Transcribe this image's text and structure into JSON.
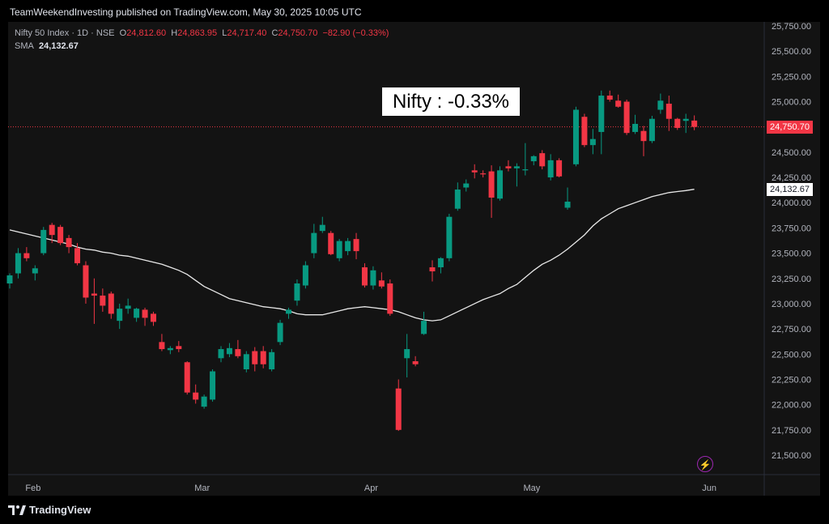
{
  "header": {
    "publish_text": "TeamWeekendInvesting published on TradingView.com, May 30, 2025 10:05 UTC"
  },
  "legend": {
    "symbol": "Nifty 50 Index · 1D · NSE",
    "open_label": "O",
    "open": "24,812.60",
    "high_label": "H",
    "high": "24,863.95",
    "low_label": "L",
    "low": "24,717.40",
    "close_label": "C",
    "close": "24,750.70",
    "change": "−82.90 (−0.33%)",
    "sma_label": "SMA",
    "sma_value": "24,132.67"
  },
  "annotation": "Nifty : -0.33%",
  "footer": {
    "brand": "TradingView"
  },
  "colors": {
    "up": "#089981",
    "down": "#f23645",
    "sma": "#e8e8e8",
    "background": "#131313"
  },
  "icons": {
    "footer_logo": "tradingview-logo-icon",
    "bolt": "lightning-icon"
  },
  "chart_data": {
    "type": "candlestick",
    "y_axis": {
      "side": "right",
      "ylim": [
        21300,
        25800
      ],
      "ticks": [
        "21,500.00",
        "21,750.00",
        "22,000.00",
        "22,250.00",
        "22,500.00",
        "22,750.00",
        "23,000.00",
        "23,250.00",
        "23,500.00",
        "23,750.00",
        "24,000.00",
        "24,250.00",
        "24,500.00",
        "24,750.00",
        "25,000.00",
        "25,250.00",
        "25,500.00",
        "25,750.00"
      ],
      "tick_values": [
        21500,
        21750,
        22000,
        22250,
        22500,
        22750,
        23000,
        23250,
        23500,
        23750,
        24000,
        24250,
        24500,
        24750,
        25000,
        25250,
        25500,
        25750
      ]
    },
    "x_axis": {
      "labels": [
        "Feb",
        "Mar",
        "Apr",
        "May",
        "Jun"
      ],
      "label_index": [
        2,
        22,
        42,
        61,
        82
      ]
    },
    "price_line": {
      "value": 24750.7,
      "label": "24,750.70"
    },
    "sma_marker": {
      "value": 24132.67,
      "label": "24,132.67"
    },
    "candles": [
      {
        "o": 23200,
        "h": 23300,
        "l": 23150,
        "c": 23280
      },
      {
        "o": 23300,
        "h": 23550,
        "l": 23250,
        "c": 23500
      },
      {
        "o": 23500,
        "h": 23560,
        "l": 23420,
        "c": 23450
      },
      {
        "o": 23300,
        "h": 23380,
        "l": 23230,
        "c": 23350
      },
      {
        "o": 23500,
        "h": 23760,
        "l": 23480,
        "c": 23730
      },
      {
        "o": 23780,
        "h": 23800,
        "l": 23600,
        "c": 23680
      },
      {
        "o": 23760,
        "h": 23780,
        "l": 23580,
        "c": 23600
      },
      {
        "o": 23650,
        "h": 23680,
        "l": 23500,
        "c": 23560
      },
      {
        "o": 23550,
        "h": 23600,
        "l": 23380,
        "c": 23400
      },
      {
        "o": 23380,
        "h": 23420,
        "l": 23000,
        "c": 23060
      },
      {
        "o": 23100,
        "h": 23250,
        "l": 22800,
        "c": 23080
      },
      {
        "o": 23080,
        "h": 23150,
        "l": 22920,
        "c": 22980
      },
      {
        "o": 23100,
        "h": 23120,
        "l": 22850,
        "c": 22900
      },
      {
        "o": 22830,
        "h": 23000,
        "l": 22750,
        "c": 22950
      },
      {
        "o": 22950,
        "h": 23050,
        "l": 22900,
        "c": 22980
      },
      {
        "o": 22860,
        "h": 22960,
        "l": 22820,
        "c": 22950
      },
      {
        "o": 22940,
        "h": 22960,
        "l": 22780,
        "c": 22860
      },
      {
        "o": 22900,
        "h": 22920,
        "l": 22780,
        "c": 22820
      },
      {
        "o": 22620,
        "h": 22700,
        "l": 22530,
        "c": 22550
      },
      {
        "o": 22540,
        "h": 22580,
        "l": 22500,
        "c": 22560
      },
      {
        "o": 22580,
        "h": 22630,
        "l": 22520,
        "c": 22550
      },
      {
        "o": 22420,
        "h": 22430,
        "l": 22100,
        "c": 22120
      },
      {
        "o": 22120,
        "h": 22200,
        "l": 22010,
        "c": 22050
      },
      {
        "o": 21980,
        "h": 22100,
        "l": 21960,
        "c": 22080
      },
      {
        "o": 22050,
        "h": 22350,
        "l": 22030,
        "c": 22330
      },
      {
        "o": 22460,
        "h": 22580,
        "l": 22420,
        "c": 22550
      },
      {
        "o": 22500,
        "h": 22610,
        "l": 22470,
        "c": 22560
      },
      {
        "o": 22550,
        "h": 22640,
        "l": 22460,
        "c": 22480
      },
      {
        "o": 22350,
        "h": 22530,
        "l": 22320,
        "c": 22500
      },
      {
        "o": 22530,
        "h": 22570,
        "l": 22330,
        "c": 22400
      },
      {
        "o": 22530,
        "h": 22580,
        "l": 22360,
        "c": 22400
      },
      {
        "o": 22350,
        "h": 22550,
        "l": 22330,
        "c": 22520
      },
      {
        "o": 22620,
        "h": 22840,
        "l": 22590,
        "c": 22810
      },
      {
        "o": 22900,
        "h": 22960,
        "l": 22850,
        "c": 22940
      },
      {
        "o": 23030,
        "h": 23240,
        "l": 22980,
        "c": 23200
      },
      {
        "o": 23180,
        "h": 23420,
        "l": 23150,
        "c": 23380
      },
      {
        "o": 23500,
        "h": 23790,
        "l": 23450,
        "c": 23700
      },
      {
        "o": 23720,
        "h": 23860,
        "l": 23700,
        "c": 23780
      },
      {
        "o": 23700,
        "h": 23720,
        "l": 23480,
        "c": 23490
      },
      {
        "o": 23450,
        "h": 23640,
        "l": 23420,
        "c": 23620
      },
      {
        "o": 23520,
        "h": 23650,
        "l": 23480,
        "c": 23620
      },
      {
        "o": 23640,
        "h": 23700,
        "l": 23440,
        "c": 23520
      },
      {
        "o": 23360,
        "h": 23400,
        "l": 23160,
        "c": 23180
      },
      {
        "o": 23180,
        "h": 23370,
        "l": 23140,
        "c": 23330
      },
      {
        "o": 23230,
        "h": 23310,
        "l": 23150,
        "c": 23170
      },
      {
        "o": 23200,
        "h": 23240,
        "l": 22880,
        "c": 22900
      },
      {
        "o": 22160,
        "h": 22250,
        "l": 21740,
        "c": 21750
      },
      {
        "o": 22460,
        "h": 22700,
        "l": 22270,
        "c": 22550
      },
      {
        "o": 22430,
        "h": 22480,
        "l": 22380,
        "c": 22400
      },
      {
        "o": 22700,
        "h": 22920,
        "l": 22690,
        "c": 22830
      },
      {
        "o": 23360,
        "h": 23430,
        "l": 23220,
        "c": 23320
      },
      {
        "o": 23360,
        "h": 23460,
        "l": 23300,
        "c": 23450
      },
      {
        "o": 23450,
        "h": 23890,
        "l": 23420,
        "c": 23860
      },
      {
        "o": 23940,
        "h": 24200,
        "l": 23920,
        "c": 24130
      },
      {
        "o": 24150,
        "h": 24230,
        "l": 24110,
        "c": 24190
      },
      {
        "o": 24320,
        "h": 24380,
        "l": 24240,
        "c": 24300
      },
      {
        "o": 24290,
        "h": 24320,
        "l": 24250,
        "c": 24280
      },
      {
        "o": 24310,
        "h": 24370,
        "l": 23850,
        "c": 24050
      },
      {
        "o": 24040,
        "h": 24360,
        "l": 24020,
        "c": 24320
      },
      {
        "o": 24360,
        "h": 24420,
        "l": 24310,
        "c": 24340
      },
      {
        "o": 24340,
        "h": 24390,
        "l": 24160,
        "c": 24360
      },
      {
        "o": 24320,
        "h": 24590,
        "l": 24270,
        "c": 24330
      },
      {
        "o": 24410,
        "h": 24470,
        "l": 24370,
        "c": 24460
      },
      {
        "o": 24490,
        "h": 24520,
        "l": 24330,
        "c": 24360
      },
      {
        "o": 24250,
        "h": 24480,
        "l": 24220,
        "c": 24420
      },
      {
        "o": 24420,
        "h": 24440,
        "l": 24250,
        "c": 24260
      },
      {
        "o": 23950,
        "h": 24150,
        "l": 23930,
        "c": 24010
      },
      {
        "o": 24380,
        "h": 24950,
        "l": 24360,
        "c": 24920
      },
      {
        "o": 24850,
        "h": 24880,
        "l": 24550,
        "c": 24570
      },
      {
        "o": 24570,
        "h": 24730,
        "l": 24480,
        "c": 24630
      },
      {
        "o": 24700,
        "h": 25110,
        "l": 24480,
        "c": 25060
      },
      {
        "o": 25060,
        "h": 25110,
        "l": 25000,
        "c": 25020
      },
      {
        "o": 25010,
        "h": 25070,
        "l": 24940,
        "c": 24950
      },
      {
        "o": 25000,
        "h": 25020,
        "l": 24670,
        "c": 24690
      },
      {
        "o": 24700,
        "h": 24870,
        "l": 24680,
        "c": 24780
      },
      {
        "o": 24710,
        "h": 24760,
        "l": 24460,
        "c": 24610
      },
      {
        "o": 24610,
        "h": 24860,
        "l": 24590,
        "c": 24830
      },
      {
        "o": 24920,
        "h": 25080,
        "l": 24880,
        "c": 25010
      },
      {
        "o": 24980,
        "h": 25060,
        "l": 24710,
        "c": 24830
      },
      {
        "o": 24830,
        "h": 24840,
        "l": 24720,
        "c": 24740
      },
      {
        "o": 24810,
        "h": 24880,
        "l": 24690,
        "c": 24830
      },
      {
        "o": 24812.6,
        "h": 24863.95,
        "l": 24717.4,
        "c": 24750.7
      }
    ],
    "sma": [
      23730,
      23710,
      23690,
      23670,
      23650,
      23630,
      23610,
      23590,
      23560,
      23540,
      23530,
      23510,
      23500,
      23480,
      23470,
      23450,
      23430,
      23410,
      23390,
      23360,
      23330,
      23290,
      23230,
      23170,
      23130,
      23090,
      23050,
      23030,
      23010,
      22990,
      22970,
      22960,
      22950,
      22930,
      22900,
      22890,
      22890,
      22890,
      22910,
      22930,
      22950,
      22960,
      22970,
      22960,
      22950,
      22940,
      22920,
      22890,
      22860,
      22840,
      22830,
      22840,
      22880,
      22920,
      22960,
      23000,
      23040,
      23070,
      23100,
      23150,
      23190,
      23260,
      23330,
      23390,
      23430,
      23480,
      23540,
      23610,
      23680,
      23770,
      23840,
      23890,
      23940,
      23970,
      24000,
      24030,
      24060,
      24080,
      24100,
      24110,
      24120,
      24132.67
    ]
  }
}
